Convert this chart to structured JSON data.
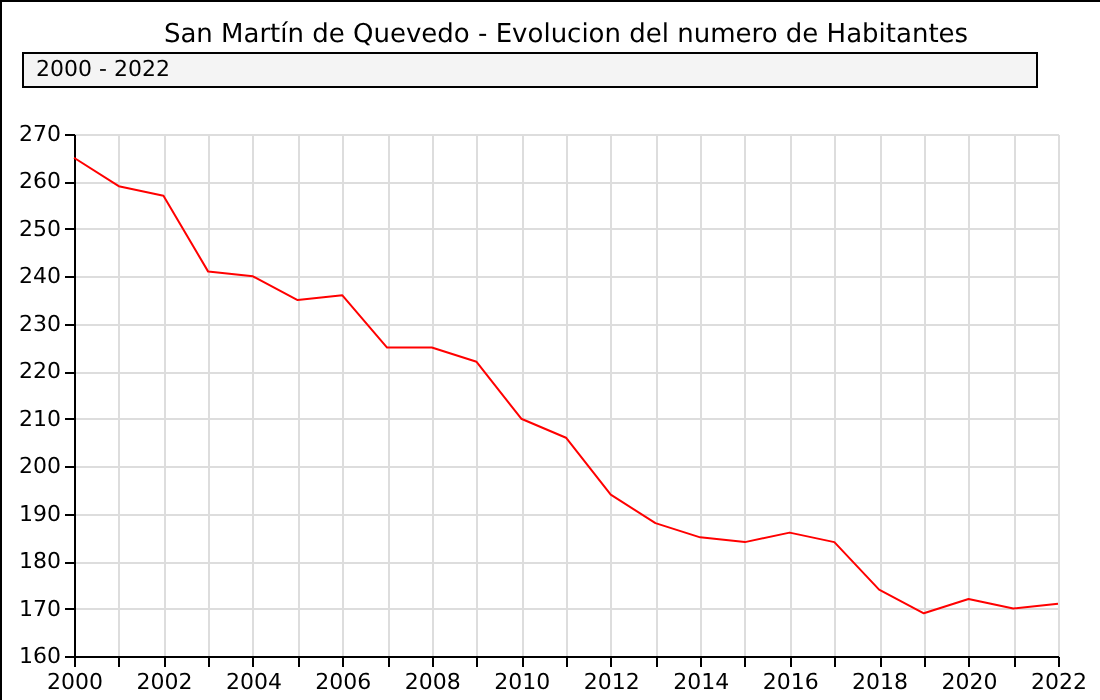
{
  "chart_data": {
    "type": "line",
    "title": "San Martín de Quevedo - Evolucion del numero de Habitantes",
    "subtitle": "2000 - 2022",
    "x": [
      2000,
      2001,
      2002,
      2003,
      2004,
      2005,
      2006,
      2007,
      2008,
      2009,
      2010,
      2011,
      2012,
      2013,
      2014,
      2015,
      2016,
      2017,
      2018,
      2019,
      2020,
      2021,
      2022
    ],
    "series": [
      {
        "color": "#ff0000",
        "values": [
          265,
          259,
          257,
          241,
          240,
          235,
          236,
          225,
          225,
          222,
          210,
          206,
          194,
          188,
          185,
          184,
          186,
          184,
          174,
          169,
          172,
          170,
          171
        ]
      }
    ],
    "xlim": [
      2000,
      2022
    ],
    "xticks": [
      2000,
      {
        "value": 2001,
        "label": null
      },
      2002,
      {
        "value": 2003,
        "label": null
      },
      2004,
      {
        "value": 2005,
        "label": null
      },
      2006,
      {
        "value": 2007,
        "label": null
      },
      2008,
      {
        "value": 2009,
        "label": null
      },
      2010,
      {
        "value": 2011,
        "label": null
      },
      2012,
      {
        "value": 2013,
        "label": null
      },
      2014,
      {
        "value": 2015,
        "label": null
      },
      2016,
      {
        "value": 2017,
        "label": null
      },
      2018,
      {
        "value": 2019,
        "label": null
      },
      2020,
      {
        "value": 2021,
        "label": null
      },
      2022
    ],
    "ylim": [
      160,
      270
    ],
    "yticks": [
      160,
      170,
      180,
      190,
      200,
      210,
      220,
      230,
      240,
      250,
      260,
      270
    ],
    "grid": true,
    "marker": "none",
    "line_style": "solid",
    "legend": false
  }
}
